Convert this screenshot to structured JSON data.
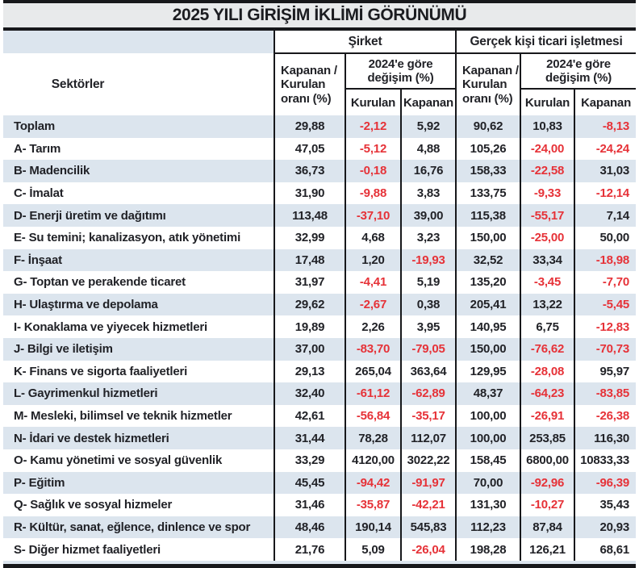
{
  "title": "2025 YILI GİRİŞİM İKLİMİ GÖRÜNÜMÜ",
  "chart_data": {
    "type": "table",
    "title": "2025 YILI GİRİŞİM İKLİMİ GÖRÜNÜMÜ",
    "sector_column_header": "Sektörler",
    "column_groups": [
      "Şirket",
      "Gerçek kişi ticari işletmesi"
    ],
    "ratio_column_header": "Kapanan / Kurulan oranı (%)",
    "change_group_header": "2024'e göre değişim (%)",
    "change_sub_headers": [
      "Kurulan",
      "Kapanan"
    ],
    "columns_per_group": [
      "Kapanan / Kurulan oranı (%)",
      "2024'e göre değişim (%) - Kurulan",
      "2024'e göre değişim (%) - Kapanan"
    ],
    "rows": [
      {
        "sector": "Toplam",
        "emphasis": true,
        "values": [
          "29,88",
          "-2,12",
          "5,92",
          "90,62",
          "10,83",
          "-8,13"
        ]
      },
      {
        "sector": "A- Tarım",
        "emphasis": false,
        "values": [
          "47,05",
          "-5,12",
          "4,88",
          "105,26",
          "-24,00",
          "-24,24"
        ]
      },
      {
        "sector": "B- Madencilik",
        "emphasis": false,
        "values": [
          "36,73",
          "-0,18",
          "16,76",
          "158,33",
          "-22,58",
          "31,03"
        ]
      },
      {
        "sector": "C- İmalat",
        "emphasis": false,
        "values": [
          "31,90",
          "-9,88",
          "3,83",
          "133,75",
          "-9,33",
          "-12,14"
        ]
      },
      {
        "sector": "D- Enerji üretim ve dağıtımı",
        "emphasis": false,
        "values": [
          "113,48",
          "-37,10",
          "39,00",
          "115,38",
          "-55,17",
          "7,14"
        ]
      },
      {
        "sector": "E- Su temini; kanalizasyon, atık yönetimi",
        "emphasis": false,
        "values": [
          "32,99",
          "4,68",
          "3,23",
          "150,00",
          "-25,00",
          "50,00"
        ]
      },
      {
        "sector": "F- İnşaat",
        "emphasis": false,
        "values": [
          "17,48",
          "1,20",
          "-19,93",
          "32,52",
          "33,34",
          "-18,98"
        ]
      },
      {
        "sector": "G- Toptan ve perakende ticaret",
        "emphasis": false,
        "values": [
          "31,97",
          "-4,41",
          "5,19",
          "135,20",
          "-3,45",
          "-7,70"
        ]
      },
      {
        "sector": "H- Ulaştırma ve depolama",
        "emphasis": false,
        "values": [
          "29,62",
          "-2,67",
          "0,38",
          "205,41",
          "13,22",
          "-5,45"
        ]
      },
      {
        "sector": "I- Konaklama ve yiyecek hizmetleri",
        "emphasis": false,
        "values": [
          "19,89",
          "2,26",
          "3,95",
          "140,95",
          "6,75",
          "-12,83"
        ]
      },
      {
        "sector": "J- Bilgi ve iletişim",
        "emphasis": false,
        "values": [
          "37,00",
          "-83,70",
          "-79,05",
          "150,00",
          "-76,62",
          "-70,73"
        ]
      },
      {
        "sector": "K- Finans ve sigorta faaliyetleri",
        "emphasis": false,
        "values": [
          "29,13",
          "265,04",
          "363,64",
          "129,95",
          "-28,08",
          "95,97"
        ]
      },
      {
        "sector": "L- Gayrimenkul hizmetleri",
        "emphasis": false,
        "values": [
          "32,40",
          "-61,12",
          "-62,89",
          "48,37",
          "-64,23",
          "-83,85"
        ]
      },
      {
        "sector": "M- Mesleki, bilimsel ve teknik hizmetler",
        "emphasis": false,
        "values": [
          "42,61",
          "-56,84",
          "-35,17",
          "100,00",
          "-26,91",
          "-26,38"
        ]
      },
      {
        "sector": "N- İdari ve destek hizmetleri",
        "emphasis": false,
        "values": [
          "31,44",
          "78,28",
          "112,07",
          "100,00",
          "253,85",
          "116,30"
        ]
      },
      {
        "sector": "O- Kamu yönetimi ve sosyal güvenlik",
        "emphasis": false,
        "values": [
          "33,29",
          "4120,00",
          "3022,22",
          "158,45",
          "6800,00",
          "10833,33"
        ]
      },
      {
        "sector": "P- Eğitim",
        "emphasis": false,
        "values": [
          "45,45",
          "-94,42",
          "-91,97",
          "70,00",
          "-92,96",
          "-96,39"
        ]
      },
      {
        "sector": "Q- Sağlık ve sosyal hizmeler",
        "emphasis": false,
        "values": [
          "31,46",
          "-35,87",
          "-42,21",
          "131,30",
          "-10,27",
          "35,43"
        ]
      },
      {
        "sector": "R- Kültür, sanat, eğlence, dinlence ve spor",
        "emphasis": false,
        "values": [
          "48,46",
          "190,14",
          "545,83",
          "112,23",
          "87,84",
          "20,93"
        ]
      },
      {
        "sector": "S- Diğer hizmet faaliyetleri",
        "emphasis": false,
        "values": [
          "21,76",
          "5,09",
          "-26,04",
          "198,28",
          "126,21",
          "68,61"
        ]
      }
    ]
  },
  "colors": {
    "negative_value": "#e63238",
    "row_stripe": "#dce5ee",
    "title_background": "#e8eaeb",
    "border_black": "#17181b",
    "text": "#212227"
  }
}
